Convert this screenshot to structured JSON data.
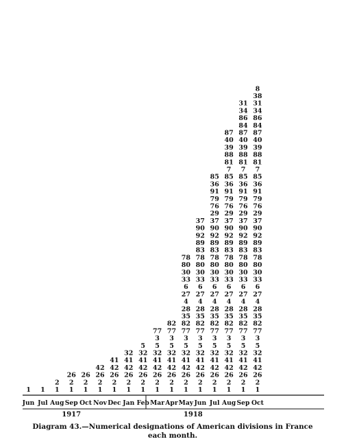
{
  "chart_data": {
    "type": "table",
    "title": "",
    "caption_line1": "Diagram 43.—Numerical designations of American divisions in France",
    "caption_line2": "each month.",
    "years": [
      {
        "label": "1917",
        "from_month": 0,
        "to_month": 6
      },
      {
        "label": "1918",
        "from_month": 7,
        "to_month": 16
      }
    ],
    "months": [
      "Jun",
      "Jul",
      "Aug",
      "Sep",
      "Oct",
      "Nov",
      "Dec",
      "Jan",
      "Feb",
      "Mar",
      "Apr",
      "May",
      "Jun",
      "Jul",
      "Aug",
      "Sep",
      "Oct"
    ],
    "stack_order": [
      1,
      2,
      26,
      42,
      41,
      32,
      5,
      3,
      77,
      82,
      35,
      28,
      4,
      27,
      6,
      33,
      30,
      80,
      78,
      83,
      89,
      92,
      90,
      37,
      29,
      76,
      79,
      91,
      36,
      85,
      7,
      81,
      88,
      39,
      40,
      87,
      84,
      86,
      34,
      31,
      38,
      8
    ],
    "division_counts": [
      1,
      1,
      2,
      3,
      3,
      4,
      5,
      6,
      7,
      9,
      10,
      19,
      24,
      30,
      36,
      40,
      42
    ]
  }
}
